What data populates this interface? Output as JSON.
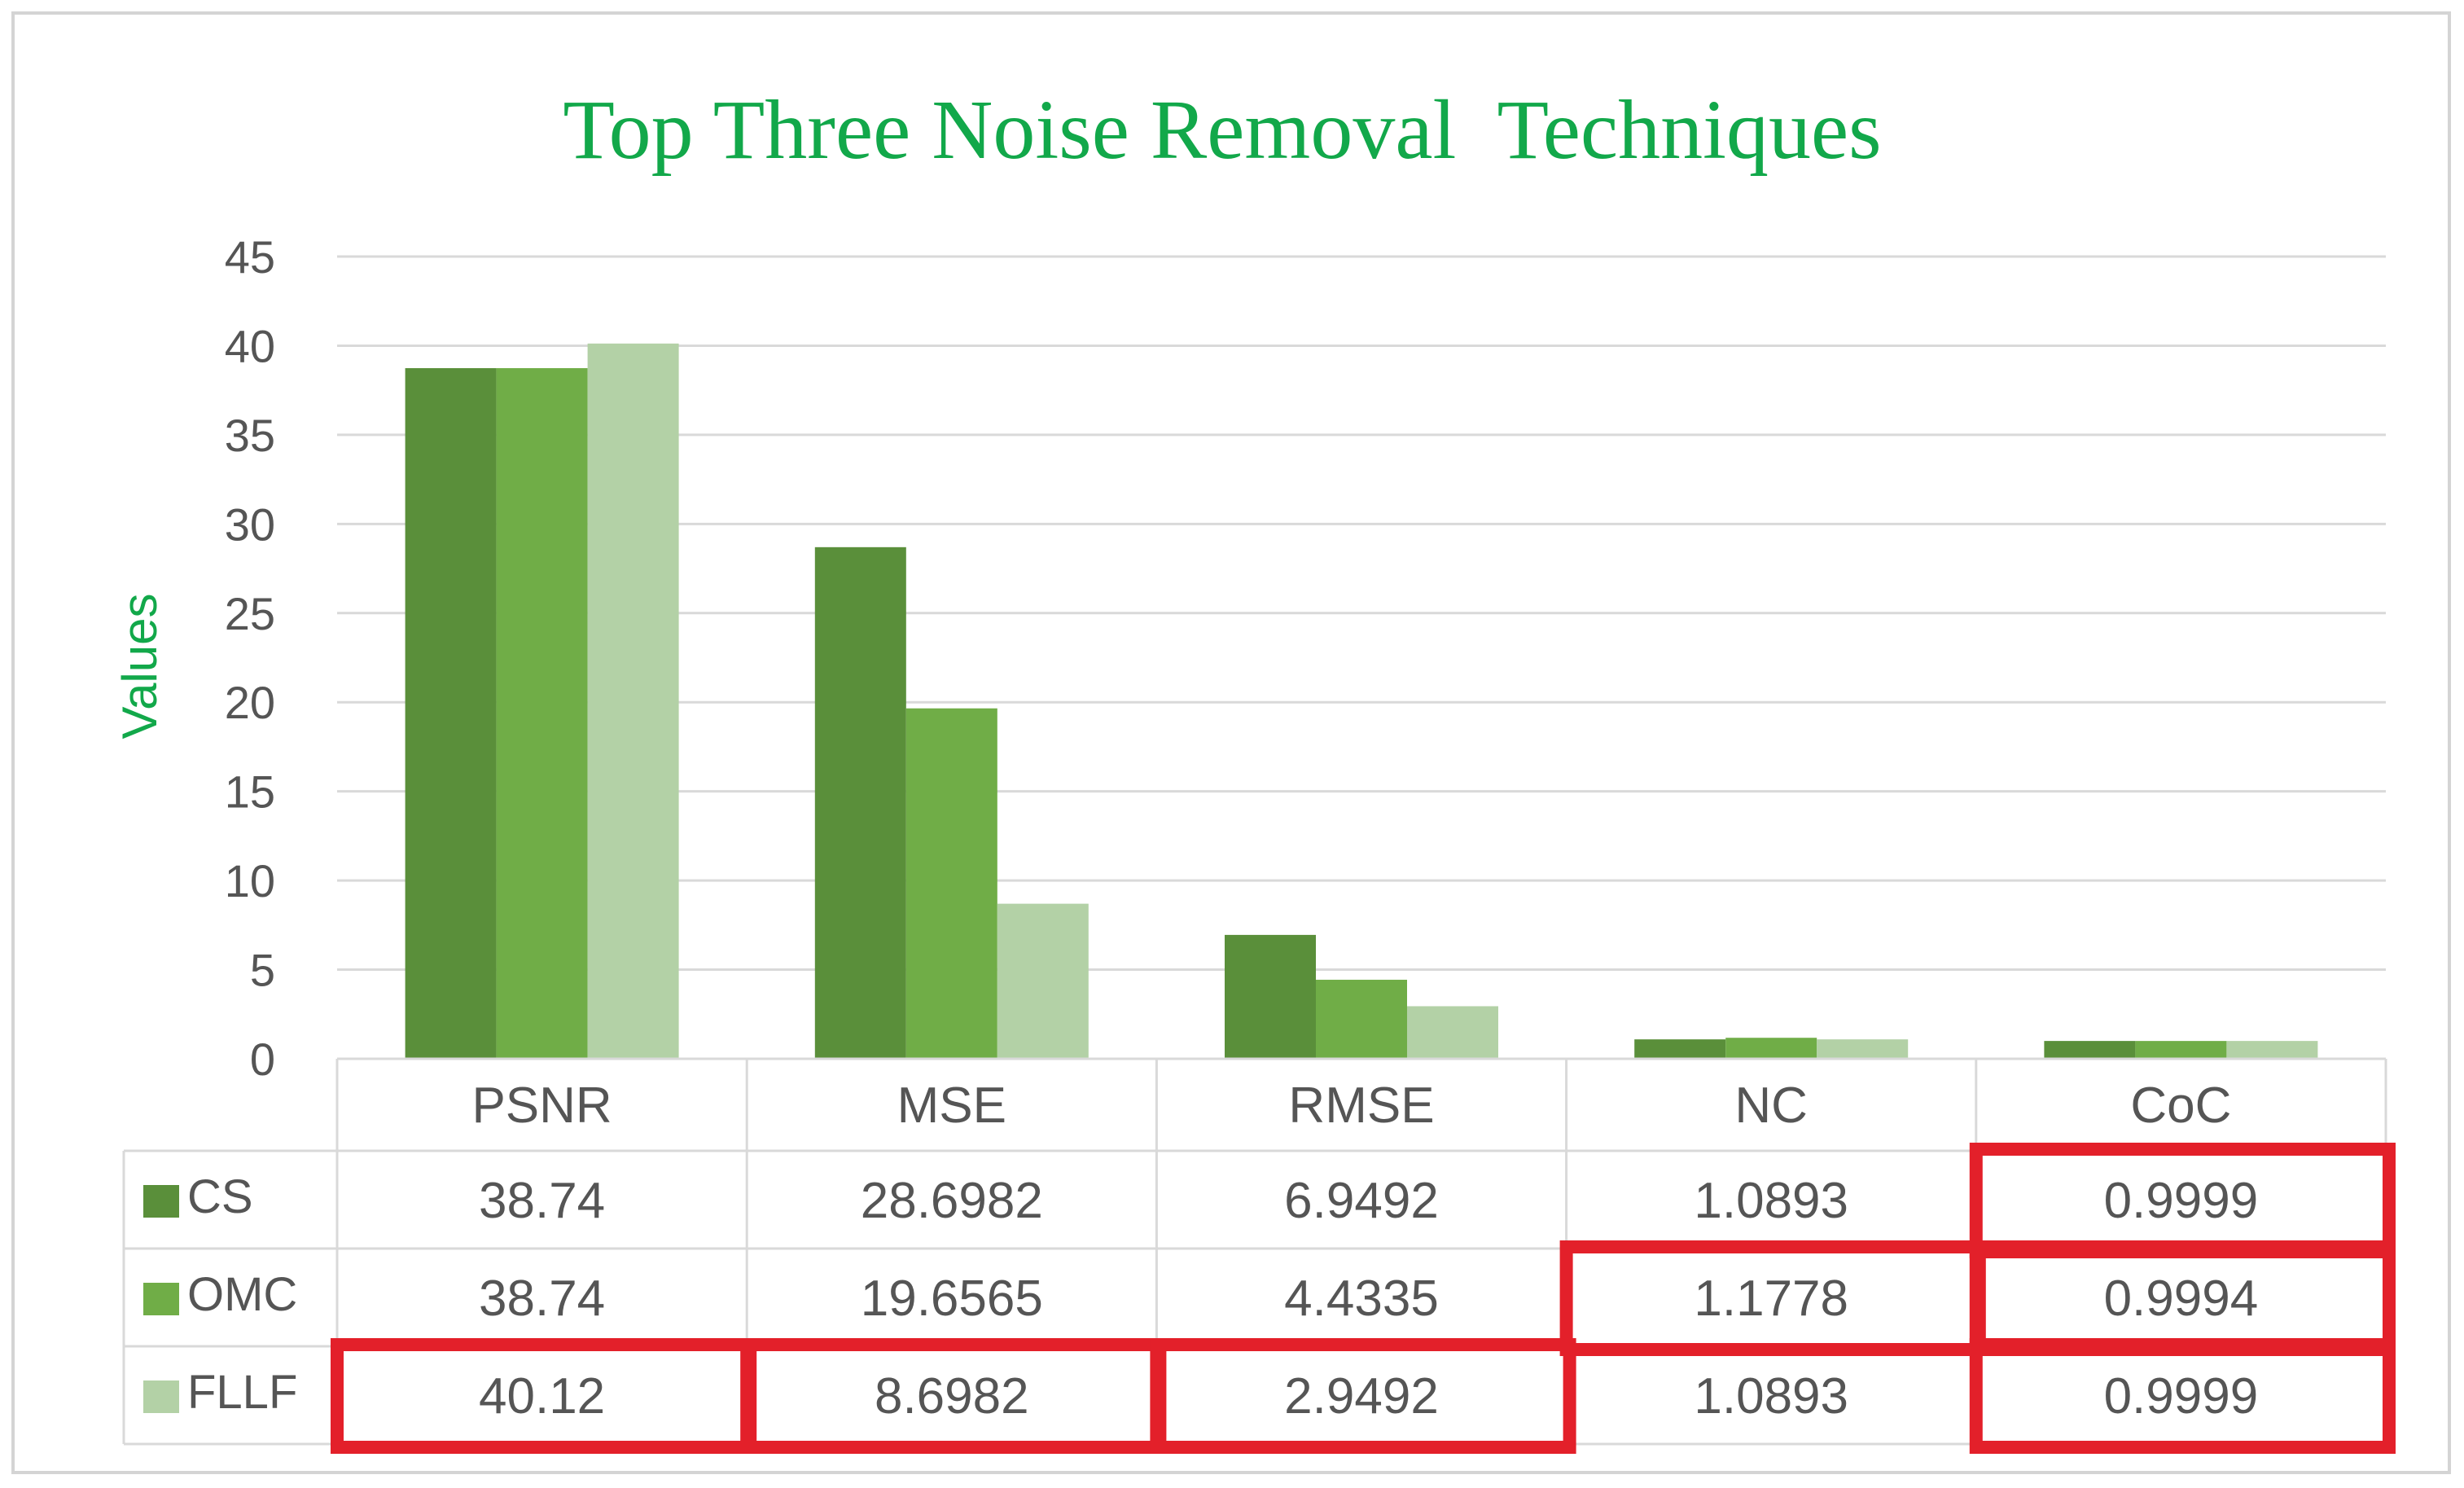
{
  "chart_data": {
    "type": "bar",
    "title": "Top Three Noise Removal  Techniques",
    "ylabel": "Values",
    "xlabel": "",
    "ylim": [
      0,
      45
    ],
    "yticks": [
      0,
      5,
      10,
      15,
      20,
      25,
      30,
      35,
      40,
      45
    ],
    "grid": true,
    "legend": "data-table",
    "categories": [
      "PSNR",
      "MSE",
      "RMSE",
      "NC",
      "CoC"
    ],
    "series": [
      {
        "name": "CS",
        "color": "#5a8f3a",
        "values": [
          38.74,
          28.6982,
          6.9492,
          1.0893,
          0.9999
        ],
        "labels": [
          "38.74",
          "28.6982",
          "6.9492",
          "1.0893",
          "0.9999"
        ]
      },
      {
        "name": "OMC",
        "color": "#70ad47",
        "values": [
          38.74,
          19.6565,
          4.4335,
          1.1778,
          0.9994
        ],
        "labels": [
          "38.74",
          "19.6565",
          "4.4335",
          "1.1778",
          "0.9994"
        ]
      },
      {
        "name": "FLLF",
        "color": "#b3d1a6",
        "values": [
          40.12,
          8.6982,
          2.9492,
          1.0893,
          0.9999
        ],
        "labels": [
          "40.12",
          "8.6982",
          "2.9492",
          "1.0893",
          "0.9999"
        ]
      }
    ],
    "highlighted_cells": [
      {
        "series": "CS",
        "category": "CoC"
      },
      {
        "series": "OMC",
        "category": "NC"
      },
      {
        "series": "OMC",
        "category": "CoC"
      },
      {
        "series": "FLLF",
        "category": "PSNR"
      },
      {
        "series": "FLLF",
        "category": "MSE"
      },
      {
        "series": "FLLF",
        "category": "RMSE"
      },
      {
        "series": "FLLF",
        "category": "CoC"
      }
    ],
    "highlight_color": "#e3202a"
  }
}
